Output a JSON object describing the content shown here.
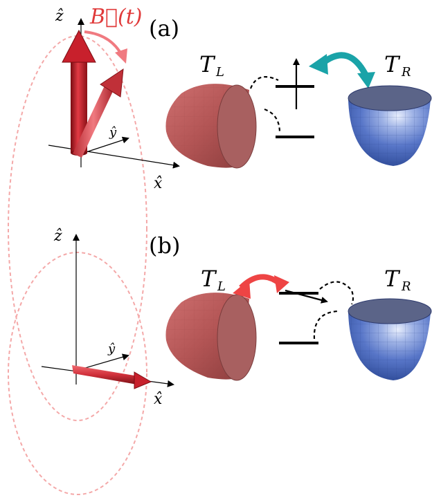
{
  "panel_a": {
    "label": "(a)",
    "axis_z": "ẑ",
    "axis_y": "ŷ",
    "axis_x": "x̂",
    "field_label": "B⃗(t)",
    "left_reservoir": {
      "T": "T",
      "sub": "L"
    },
    "right_reservoir": {
      "T": "T",
      "sub": "R"
    },
    "coupling_arrow_color": "#1aa3a8"
  },
  "panel_b": {
    "label": "(b)",
    "axis_z": "ẑ",
    "axis_y": "ŷ",
    "axis_x": "x̂",
    "left_reservoir": {
      "T": "T",
      "sub": "L"
    },
    "right_reservoir": {
      "T": "T",
      "sub": "R"
    },
    "coupling_arrow_color": "#ee4444"
  },
  "colors": {
    "field_red": "#d9303a",
    "field_label_red": "#e03a3a",
    "left_reservoir": "#b85a5a",
    "right_reservoir": "#4a68b8",
    "orbit_pink": "#f4a8a8"
  }
}
